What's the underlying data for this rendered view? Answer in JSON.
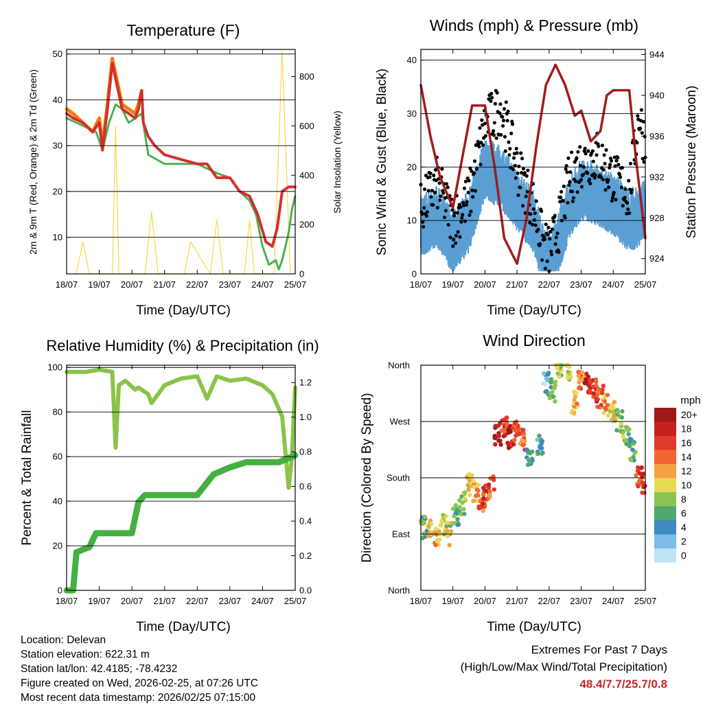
{
  "colors": {
    "temp_2m": "#d32f2f",
    "temp_9m": "#f57c00",
    "dewpoint": "#4caf50",
    "solar": "#f5d949",
    "wind": "#5a9fd4",
    "gust": "#000000",
    "pressure": "#a01c1c",
    "rh": "#8bc34a",
    "rain": "#45b041",
    "extremes": "#c62828"
  },
  "x_ticks": [
    "18/07",
    "19/07",
    "20/07",
    "21/07",
    "22/07",
    "23/07",
    "24/07",
    "25/07"
  ],
  "panels": {
    "temperature": {
      "title": "Temperature (F)",
      "ylabel_left": "2m & 9m T (Red, Orange) & 2m Td (Green)",
      "ylabel_right": "Solar Insolation (Yellow)",
      "xlabel": "Time (Day/UTC)",
      "left_ticks": [
        "10",
        "20",
        "30",
        "40",
        "50"
      ],
      "right_ticks": [
        "0",
        "200",
        "400",
        "600",
        "800"
      ]
    },
    "winds": {
      "title": "Winds (mph) & Pressure (mb)",
      "ylabel_left": "Sonic Wind & Gust (Blue, Black)",
      "ylabel_right": "Station Pressure (Maroon)",
      "xlabel": "Time (Day/UTC)",
      "left_ticks": [
        "0",
        "10",
        "20",
        "30",
        "40"
      ],
      "right_ticks": [
        "924",
        "928",
        "932",
        "936",
        "940",
        "944"
      ]
    },
    "humidity": {
      "title": "Relative Humidity (%) & Precipitation (in)",
      "ylabel_left": "Percent & Total Rainfall",
      "xlabel": "Time (Day/UTC)",
      "left_ticks": [
        "0",
        "20",
        "40",
        "60",
        "80",
        "100"
      ],
      "right_ticks": [
        "0.0",
        "0.2",
        "0.4",
        "0.6",
        "0.8",
        "1.0",
        "1.2"
      ]
    },
    "direction": {
      "title": "Wind Direction",
      "ylabel_left": "Direction (Colored By Speed)",
      "xlabel": "Time (Day/UTC)",
      "left_ticks": [
        "North",
        "East",
        "South",
        "West",
        "North"
      ],
      "legend_title": "mph",
      "legend_labels": [
        "20+",
        "18",
        "16",
        "14",
        "12",
        "10",
        "8",
        "6",
        "4",
        "2",
        "0"
      ],
      "legend_colors": [
        "#9e1a1a",
        "#c8201f",
        "#e03a2c",
        "#f06630",
        "#f5a146",
        "#e8d954",
        "#8cc454",
        "#4ea96b",
        "#3f88c0",
        "#7fbde6",
        "#bfe4f7"
      ]
    }
  },
  "meta": {
    "location": "Location: Delevan",
    "elevation": "Station elevation: 622.31 m",
    "latlon": "Station lat/lon: 42.4185; -78.4232",
    "created": "Figure created on Wed, 2026-02-25, at 07:26 UTC",
    "recent": "Most recent data timestamp: 2026/02/25 07:15:00"
  },
  "extremes": {
    "heading": "Extremes For Past 7 Days",
    "subheading": "(High/Low/Max Wind/Total Precipitation)",
    "values": "48.4/7.7/25.7/0.8"
  },
  "chart_data": [
    {
      "type": "line",
      "title": "Temperature (F)",
      "xlabel": "Time (Day/UTC)",
      "ylabel": "2m & 9m T (Red, Orange) & 2m Td (Green)",
      "y2label": "Solar Insolation (Yellow)",
      "ylim": [
        2,
        51
      ],
      "y2lim": [
        0,
        910
      ],
      "xlim": [
        0,
        7
      ],
      "series": [
        {
          "name": "2m T",
          "axis": "left",
          "x": [
            0,
            0.2,
            0.5,
            0.8,
            1.0,
            1.1,
            1.25,
            1.4,
            1.55,
            1.7,
            1.9,
            2.1,
            2.2,
            2.3,
            2.35,
            2.5,
            2.7,
            3,
            3.5,
            4,
            4.3,
            4.6,
            5,
            5.3,
            5.6,
            5.85,
            6.1,
            6.3,
            6.45,
            6.6,
            6.8,
            7
          ],
          "y": [
            37,
            36,
            35,
            33,
            35,
            29,
            38,
            48,
            43,
            38,
            37,
            36,
            38,
            42,
            35,
            32,
            30,
            28,
            27,
            26,
            26,
            23,
            23,
            20,
            19,
            15,
            9,
            8,
            12,
            20,
            21,
            21
          ]
        },
        {
          "name": "9m T",
          "axis": "left",
          "x": [
            0,
            0.2,
            0.5,
            0.8,
            1.0,
            1.1,
            1.25,
            1.4,
            1.55,
            1.7,
            1.9,
            2.1,
            2.2,
            2.3
          ],
          "y": [
            38,
            37,
            35,
            33,
            36,
            30,
            39,
            49,
            44,
            39,
            38,
            37,
            39,
            42
          ]
        },
        {
          "name": "2m Td",
          "axis": "left",
          "x": [
            0,
            0.3,
            0.6,
            0.9,
            1.1,
            1.3,
            1.5,
            1.7,
            1.9,
            2.1,
            2.3,
            2.5,
            3,
            3.5,
            4,
            4.3,
            4.6,
            5,
            5.3,
            5.6,
            5.8,
            6,
            6.2,
            6.4,
            6.5,
            6.6,
            6.8,
            6.9,
            7
          ],
          "y": [
            36,
            35,
            34,
            33,
            29,
            35,
            39,
            38,
            35,
            36,
            37,
            28,
            26,
            26,
            26,
            25,
            24,
            23,
            20,
            18,
            15,
            8,
            4,
            5,
            3,
            5,
            11,
            16,
            19
          ]
        },
        {
          "name": "Solar Insolation",
          "axis": "right",
          "x": [
            0.3,
            0.5,
            0.7,
            1.4,
            1.5,
            1.6,
            2.4,
            2.6,
            2.8,
            3.6,
            3.8,
            4.4,
            4.6,
            4.8,
            5.45,
            5.6,
            5.75,
            6.35,
            6.6,
            6.85
          ],
          "y": [
            0,
            130,
            0,
            0,
            600,
            0,
            0,
            250,
            0,
            0,
            130,
            0,
            220,
            0,
            0,
            220,
            0,
            0,
            900,
            0
          ]
        }
      ]
    },
    {
      "type": "line",
      "title": "Winds (mph) & Pressure (mb)",
      "xlabel": "Time (Day/UTC)",
      "ylabel": "Sonic Wind & Gust (Blue, Black)",
      "y2label": "Station Pressure (Maroon)",
      "ylim": [
        0,
        42
      ],
      "y2lim": [
        922.5,
        944.5
      ],
      "xlim": [
        0,
        7
      ],
      "series": [
        {
          "name": "Sonic Wind",
          "axis": "left",
          "x": [
            0,
            0.5,
            1,
            1.5,
            2,
            2.5,
            3,
            3.5,
            3.8,
            4,
            4.3,
            4.6,
            5,
            5.5,
            6,
            6.5,
            6.8,
            7
          ],
          "y": [
            9,
            11,
            6,
            10,
            20,
            18,
            14,
            10,
            4,
            2,
            6,
            12,
            16,
            15,
            13,
            10,
            11,
            12
          ]
        },
        {
          "name": "Gust",
          "axis": "left",
          "x": [
            0,
            0.5,
            1,
            1.5,
            2,
            2.5,
            3,
            3.5,
            3.8,
            4,
            4.3,
            4.6,
            5,
            5.5,
            6,
            6.5,
            6.8,
            7
          ],
          "y": [
            12,
            17,
            10,
            14,
            28,
            31,
            20,
            13,
            6,
            4,
            9,
            17,
            21,
            22,
            18,
            15,
            30,
            24
          ]
        },
        {
          "name": "Station Pressure",
          "axis": "right",
          "x": [
            0,
            0.3,
            0.6,
            1,
            1.3,
            1.6,
            2,
            2.3,
            2.6,
            3,
            3.3,
            3.6,
            3.9,
            4.2,
            4.5,
            4.8,
            5,
            5.3,
            5.6,
            5.8,
            6,
            6.2,
            6.5,
            6.7,
            7
          ],
          "y": [
            941,
            936,
            932,
            929,
            934,
            939,
            939,
            933,
            926,
            923.5,
            928,
            935,
            941,
            943,
            941,
            938,
            938.5,
            935.5,
            936.5,
            940,
            940.5,
            940.5,
            940.5,
            934,
            926
          ]
        }
      ]
    },
    {
      "type": "line",
      "title": "Relative Humidity (%) & Precipitation (in)",
      "xlabel": "Time (Day/UTC)",
      "ylabel": "Percent & Total Rainfall",
      "ylim": [
        0,
        101
      ],
      "y2lim": [
        0,
        1.3
      ],
      "xlim": [
        0,
        7
      ],
      "series": [
        {
          "name": "Relative Humidity",
          "axis": "left",
          "x": [
            0,
            0.3,
            0.6,
            1,
            1.4,
            1.5,
            1.6,
            1.8,
            2.1,
            2.2,
            2.5,
            2.6,
            3,
            3.5,
            4,
            4.3,
            4.6,
            5,
            5.5,
            6,
            6.3,
            6.6,
            6.8,
            6.9,
            7
          ],
          "y": [
            98,
            98,
            98,
            99,
            98,
            64,
            92,
            94,
            90,
            91,
            88,
            84,
            92,
            95,
            96,
            86,
            96,
            94,
            95,
            92,
            88,
            78,
            46,
            60,
            91
          ]
        },
        {
          "name": "Total Rainfall",
          "axis": "right",
          "x": [
            0,
            0.2,
            0.3,
            0.7,
            0.9,
            1.4,
            2,
            2.2,
            2.4,
            3,
            4,
            4.5,
            5,
            5.5,
            6,
            6.5,
            7
          ],
          "y": [
            0,
            0,
            0.22,
            0.25,
            0.33,
            0.33,
            0.33,
            0.51,
            0.55,
            0.55,
            0.55,
            0.67,
            0.71,
            0.74,
            0.74,
            0.74,
            0.78
          ]
        }
      ]
    },
    {
      "type": "scatter",
      "title": "Wind Direction",
      "xlabel": "Time (Day/UTC)",
      "ylabel": "Direction (Colored By Speed)",
      "yticks": [
        "North",
        "East",
        "South",
        "West",
        "North"
      ],
      "ylim": [
        0,
        360
      ],
      "xlim": [
        0,
        7
      ],
      "series": [
        {
          "name": "Direction",
          "x": [
            0.1,
            0.3,
            0.5,
            0.7,
            0.9,
            1.1,
            1.3,
            1.5,
            1.7,
            1.9,
            2.0,
            2.2,
            2.4,
            2.6,
            2.8,
            3.0,
            3.2,
            3.4,
            3.7,
            3.9,
            4.1,
            4.3,
            4.6,
            4.8,
            5.0,
            5.2,
            5.4,
            5.6,
            5.8,
            6.0,
            6.2,
            6.4,
            6.6,
            6.8,
            7.0
          ],
          "y": [
            100,
            95,
            85,
            105,
            90,
            120,
            140,
            170,
            160,
            145,
            150,
            165,
            250,
            260,
            245,
            255,
            240,
            215,
            230,
            330,
            320,
            350,
            355,
            300,
            340,
            330,
            320,
            310,
            295,
            285,
            270,
            250,
            225,
            180,
            170
          ],
          "speed": [
            6,
            10,
            12,
            8,
            9,
            6,
            8,
            10,
            12,
            14,
            16,
            15,
            20,
            16,
            18,
            16,
            14,
            6,
            4,
            3,
            6,
            8,
            10,
            12,
            14,
            18,
            16,
            14,
            12,
            10,
            8,
            8,
            6,
            16,
            18
          ]
        }
      ]
    }
  ]
}
